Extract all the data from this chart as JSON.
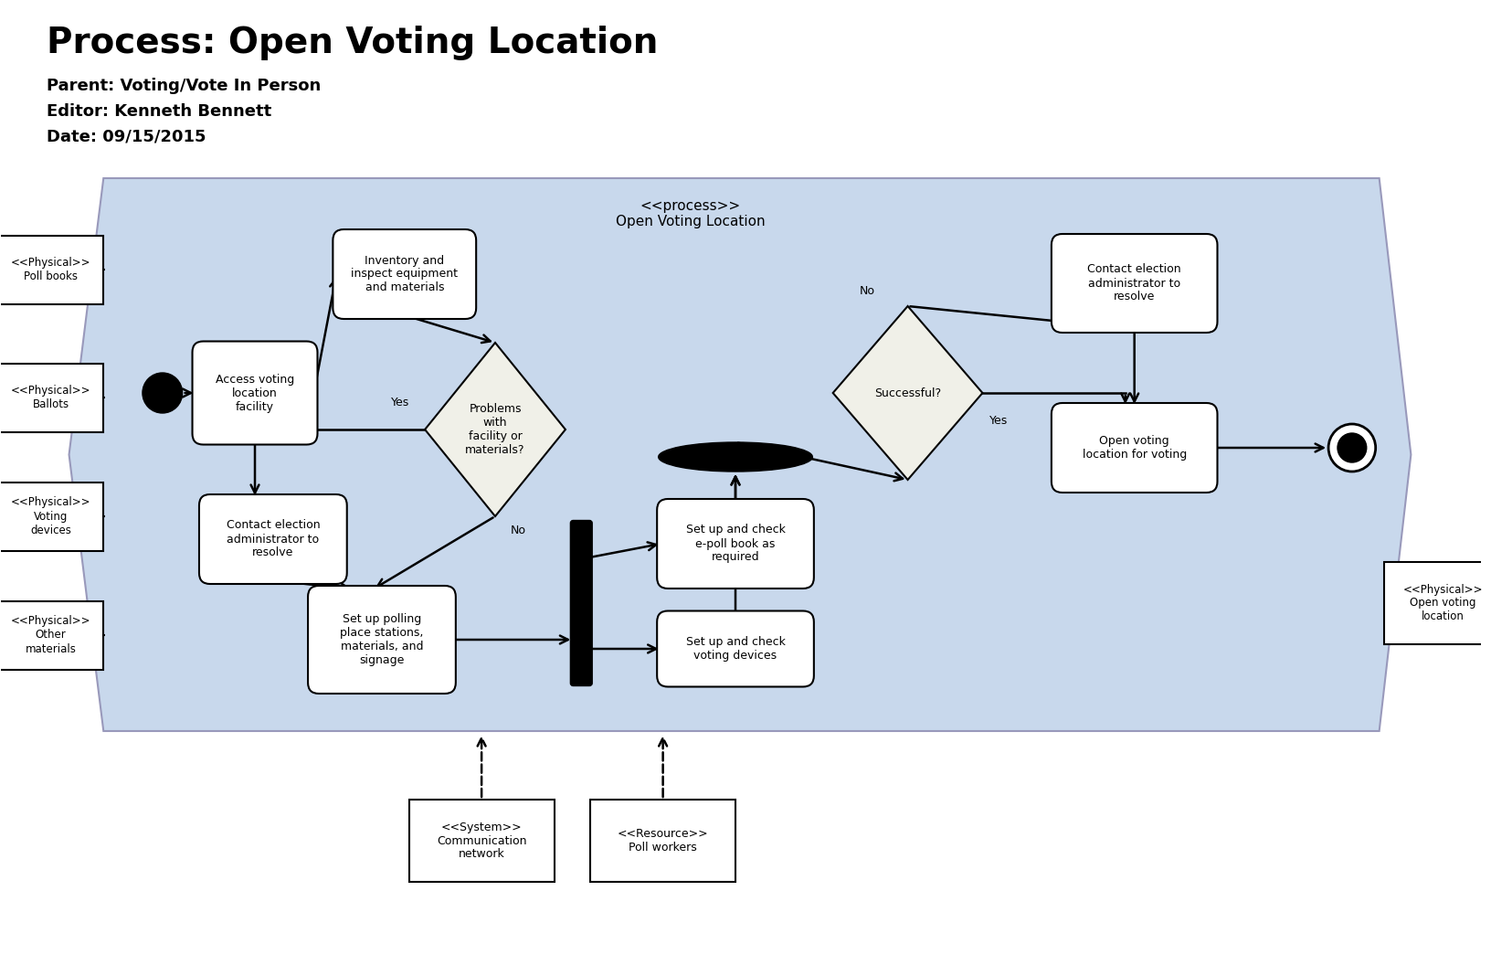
{
  "title": "Process: Open Voting Location",
  "meta_lines": [
    "Parent: Voting/Vote In Person",
    "Editor: Kenneth Bennett",
    "Date: 09/15/2015"
  ],
  "bg_color": "#c8d8ec",
  "process_label": "<<process>>\nOpen Voting Location"
}
